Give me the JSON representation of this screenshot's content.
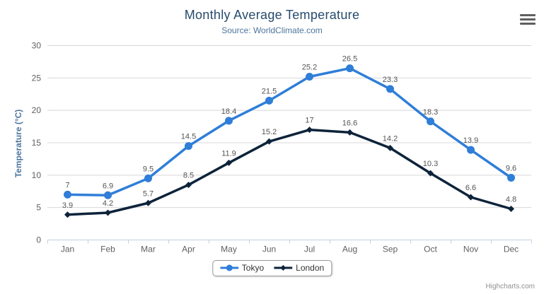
{
  "credits": {
    "label": "Highcharts.com"
  },
  "colors": {
    "title": "#274b6d",
    "subtitle": "#4d759e",
    "axis_labels": "#606060",
    "data_labels": "#555555",
    "gridline": "#d8d8d8",
    "axis_line": "#c0d0e0",
    "tokyo": "#2f7ed8",
    "london": "#0d233a"
  },
  "chart_data": {
    "type": "line",
    "title": "Monthly Average Temperature",
    "subtitle": "Source: WorldClimate.com",
    "categories": [
      "Jan",
      "Feb",
      "Mar",
      "Apr",
      "May",
      "Jun",
      "Jul",
      "Aug",
      "Sep",
      "Oct",
      "Nov",
      "Dec"
    ],
    "series": [
      {
        "name": "Tokyo",
        "color": "#2f7ed8",
        "marker": "circle",
        "values": [
          7,
          6.9,
          9.5,
          14.5,
          18.4,
          21.5,
          25.2,
          26.5,
          23.3,
          18.3,
          13.9,
          9.6
        ]
      },
      {
        "name": "London",
        "color": "#0d233a",
        "marker": "diamond",
        "values": [
          3.9,
          4.2,
          5.7,
          8.5,
          11.9,
          15.2,
          17,
          16.6,
          14.2,
          10.3,
          6.6,
          4.8
        ]
      }
    ],
    "xlabel": "",
    "ylabel": "Temperature (°C)",
    "ylim": [
      0,
      30
    ],
    "ytick_interval": 5,
    "grid": true,
    "data_labels": true,
    "legend_position": "bottom"
  }
}
